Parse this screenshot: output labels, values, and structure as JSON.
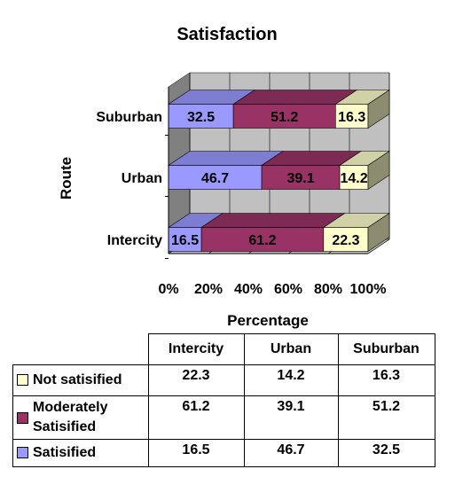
{
  "chart_data": {
    "type": "bar",
    "orientation": "horizontal",
    "stacked": "percent",
    "style": "3d",
    "title": "Satisfaction",
    "xlabel": "Percentage",
    "ylabel": "Route",
    "categories": [
      "Intercity",
      "Urban",
      "Suburban"
    ],
    "series": [
      {
        "name": "Satisfied",
        "values": [
          16.5,
          46.7,
          32.5
        ],
        "color": "#9999FF",
        "label_color": "#8080FF"
      },
      {
        "name": "Moderately Satisified",
        "values": [
          61.2,
          39.1,
          51.2
        ],
        "color": "#993366",
        "label_color": "#7A2A52"
      },
      {
        "name": "Not satisified",
        "values": [
          22.3,
          14.2,
          16.3
        ],
        "color": "#FFFFCC",
        "label_color": "#E6E6B8"
      }
    ],
    "xlim": [
      0,
      100
    ],
    "xticks": [
      "0%",
      "20%",
      "40%",
      "60%",
      "80%",
      "100%"
    ],
    "grid": true,
    "data_labels": true
  },
  "table": {
    "columns": [
      "Intercity",
      "Urban",
      "Suburban"
    ],
    "rows": [
      {
        "label": "Not satisified",
        "color": "#FFFFCC",
        "values": [
          "22.3",
          "14.2",
          "16.3"
        ]
      },
      {
        "label": "Moderately Satisified",
        "color": "#993366",
        "values": [
          "61.2",
          "39.1",
          "51.2"
        ]
      },
      {
        "label": "Satisified",
        "color": "#9999FF",
        "values": [
          "16.5",
          "46.7",
          "32.5"
        ]
      }
    ]
  }
}
